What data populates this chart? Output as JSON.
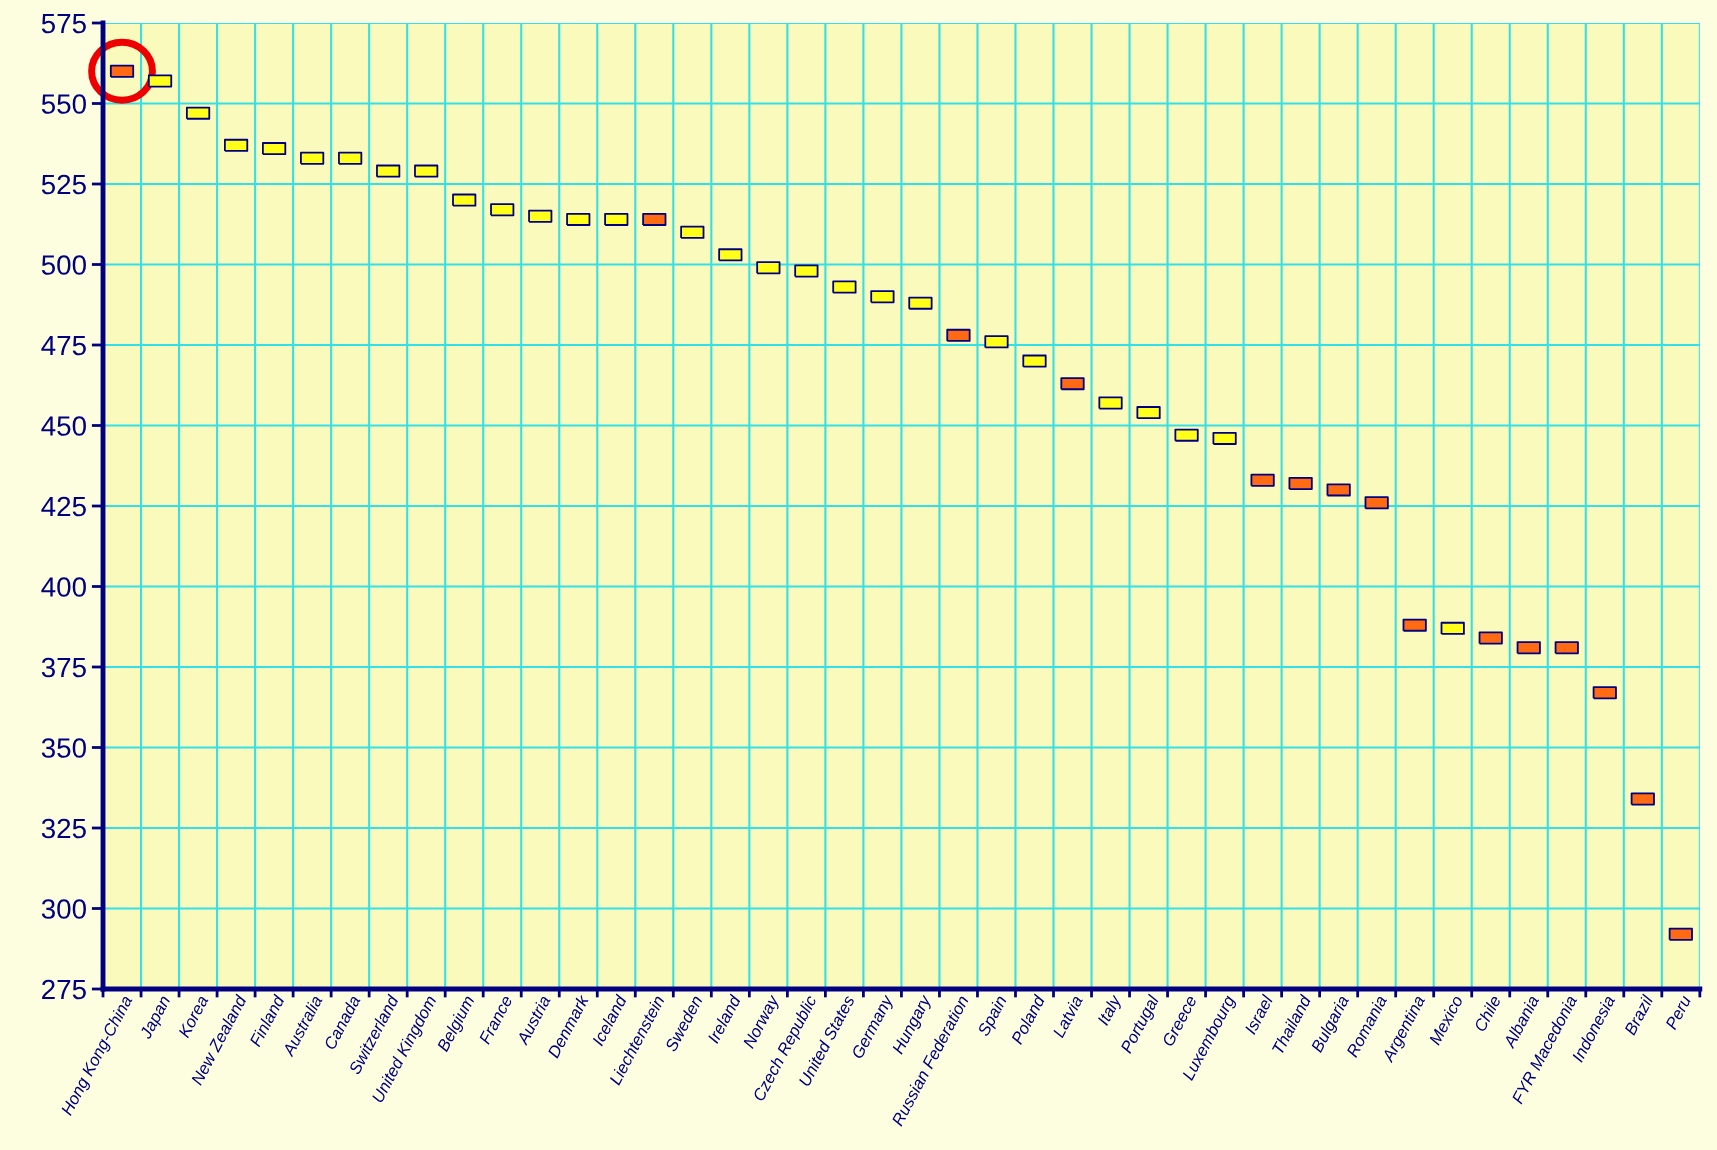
{
  "chart_data": {
    "type": "scatter",
    "categories": [
      "Hong Kong-China",
      "Japan",
      "Korea",
      "New Zealand",
      "Finland",
      "Australia",
      "Canada",
      "Switzerland",
      "United Kingdom",
      "Belgium",
      "France",
      "Austria",
      "Denmark",
      "Iceland",
      "Liechtenstein",
      "Sweden",
      "Ireland",
      "Norway",
      "Czech Republic",
      "United States",
      "Germany",
      "Hungary",
      "Russian Federation",
      "Spain",
      "Poland",
      "Latvia",
      "Italy",
      "Portugal",
      "Greece",
      "Luxembourg",
      "Israel",
      "Thailand",
      "Bulgaria",
      "Romania",
      "Argentina",
      "Mexico",
      "Chile",
      "Albania",
      "FYR Macedonia",
      "Indonesia",
      "Brazil",
      "Peru"
    ],
    "values": [
      560,
      557,
      547,
      537,
      536,
      533,
      533,
      529,
      529,
      520,
      517,
      515,
      514,
      514,
      514,
      510,
      503,
      499,
      498,
      493,
      490,
      488,
      478,
      476,
      470,
      463,
      457,
      454,
      447,
      446,
      433,
      432,
      430,
      426,
      388,
      387,
      384,
      381,
      381,
      367,
      334,
      292
    ],
    "colors": [
      "#ff6a13",
      "#ffff1a",
      "#ffff1a",
      "#ffff1a",
      "#ffff1a",
      "#ffff1a",
      "#ffff1a",
      "#ffff1a",
      "#ffff1a",
      "#ffff1a",
      "#ffff1a",
      "#ffff1a",
      "#ffff1a",
      "#ffff1a",
      "#ff6a13",
      "#ffff1a",
      "#ffff1a",
      "#ffff1a",
      "#ffff1a",
      "#ffff1a",
      "#ffff1a",
      "#ffff1a",
      "#ff6a13",
      "#ffff1a",
      "#ffff1a",
      "#ff6a13",
      "#ffff1a",
      "#ffff1a",
      "#ffff1a",
      "#ffff1a",
      "#ff6a13",
      "#ff6a13",
      "#ff6a13",
      "#ff6a13",
      "#ff6a13",
      "#ffff1a",
      "#ff6a13",
      "#ff6a13",
      "#ff6a13",
      "#ff6a13",
      "#ff6a13",
      "#ff6a13"
    ],
    "ylim": [
      275,
      575
    ],
    "yticks": [
      275,
      300,
      325,
      350,
      375,
      400,
      425,
      450,
      475,
      500,
      525,
      550,
      575
    ],
    "grid": true,
    "marker": "square",
    "legend": false
  }
}
